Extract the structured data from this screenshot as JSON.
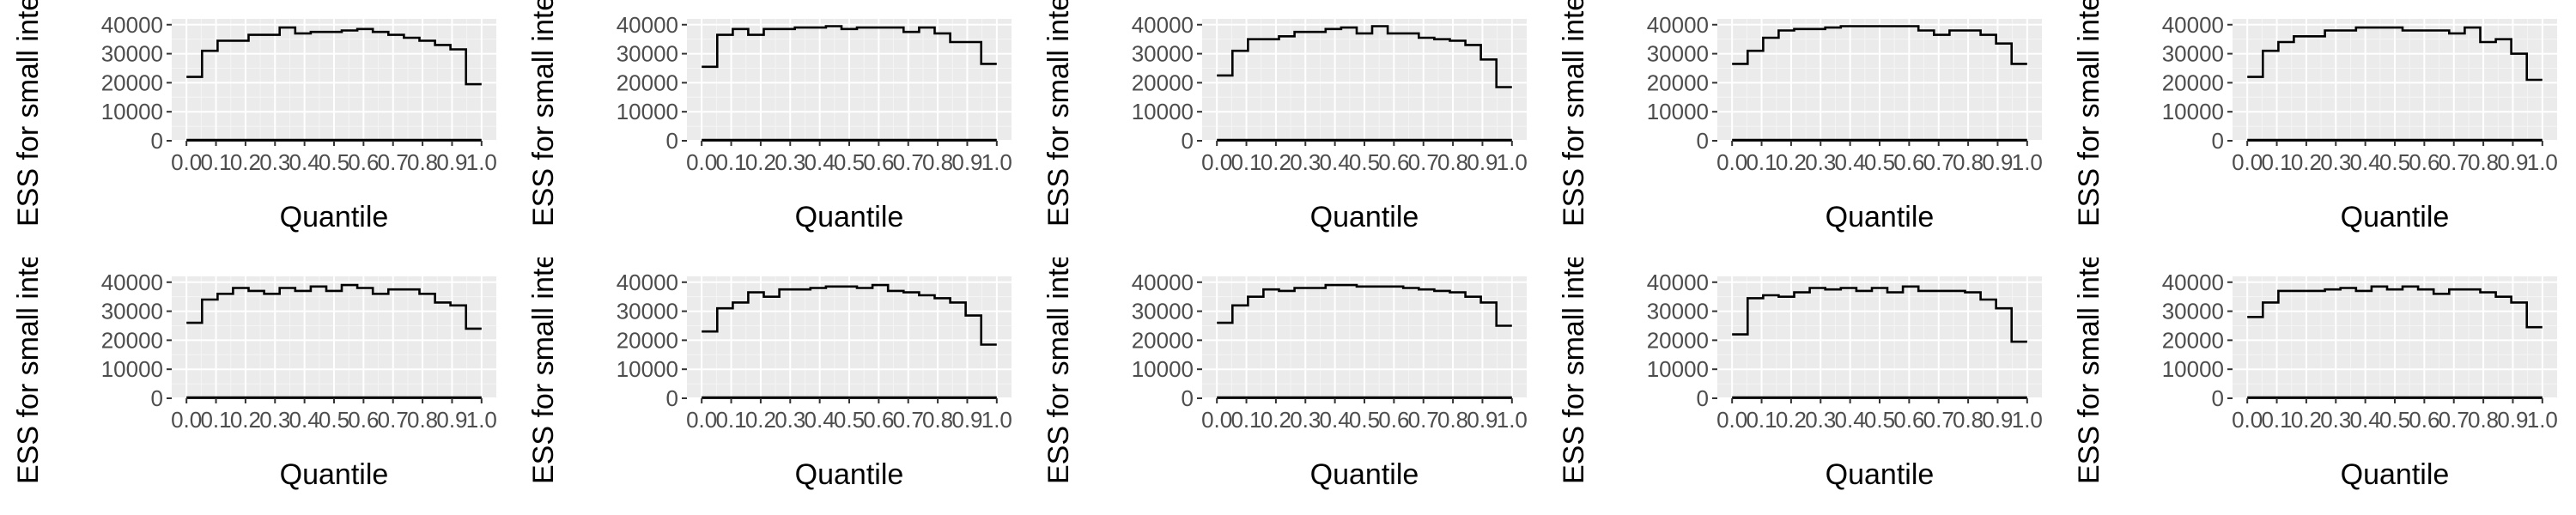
{
  "chart_data": [
    {
      "type": "line",
      "xlabel": "Quantile",
      "ylabel": "ESS for small intervals",
      "ylim": [
        0,
        42000
      ],
      "x_ticks": [
        "0.0",
        "0.1",
        "0.2",
        "0.3",
        "0.4",
        "0.5",
        "0.6",
        "0.7",
        "0.8",
        "0.9",
        "1.0"
      ],
      "y_ticks": [
        "0",
        "10000",
        "20000",
        "30000",
        "40000"
      ],
      "series": [
        {
          "values": [
            22000,
            31000,
            34500,
            34500,
            36500,
            36500,
            39000,
            37000,
            37500,
            37500,
            38000,
            38500,
            37500,
            36500,
            35500,
            34500,
            33000,
            31500,
            19500
          ]
        },
        {
          "values": [
            200,
            200,
            200,
            200,
            200,
            200,
            200,
            200,
            200,
            200,
            200,
            200,
            200,
            200,
            200,
            200,
            200,
            200,
            200
          ]
        }
      ]
    },
    {
      "type": "line",
      "xlabel": "Quantile",
      "ylabel": "ESS for small intervals",
      "ylim": [
        0,
        42000
      ],
      "x_ticks": [
        "0.0",
        "0.1",
        "0.2",
        "0.3",
        "0.4",
        "0.5",
        "0.6",
        "0.7",
        "0.8",
        "0.9",
        "1.0"
      ],
      "y_ticks": [
        "0",
        "10000",
        "20000",
        "30000",
        "40000"
      ],
      "series": [
        {
          "values": [
            25500,
            36500,
            38500,
            36500,
            38500,
            38500,
            39000,
            39000,
            39500,
            38500,
            39000,
            39000,
            39000,
            37500,
            39000,
            37000,
            34000,
            34000,
            26500
          ]
        },
        {
          "values": [
            200,
            200,
            200,
            200,
            200,
            200,
            200,
            200,
            200,
            200,
            200,
            200,
            200,
            200,
            200,
            200,
            200,
            200,
            200
          ]
        }
      ]
    },
    {
      "type": "line",
      "xlabel": "Quantile",
      "ylabel": "ESS for small intervals",
      "ylim": [
        0,
        42000
      ],
      "x_ticks": [
        "0.0",
        "0.1",
        "0.2",
        "0.3",
        "0.4",
        "0.5",
        "0.6",
        "0.7",
        "0.8",
        "0.9",
        "1.0"
      ],
      "y_ticks": [
        "0",
        "10000",
        "20000",
        "30000",
        "40000"
      ],
      "series": [
        {
          "values": [
            22500,
            31000,
            35000,
            35000,
            36000,
            37500,
            37500,
            38500,
            39000,
            37000,
            39500,
            37000,
            37000,
            35500,
            35000,
            34500,
            33000,
            28000,
            18500
          ]
        },
        {
          "values": [
            200,
            200,
            200,
            200,
            200,
            200,
            200,
            200,
            200,
            200,
            200,
            200,
            200,
            200,
            200,
            200,
            200,
            200,
            200
          ]
        }
      ]
    },
    {
      "type": "line",
      "xlabel": "Quantile",
      "ylabel": "ESS for small intervals",
      "ylim": [
        0,
        42000
      ],
      "x_ticks": [
        "0.0",
        "0.1",
        "0.2",
        "0.3",
        "0.4",
        "0.5",
        "0.6",
        "0.7",
        "0.8",
        "0.9",
        "1.0"
      ],
      "y_ticks": [
        "0",
        "10000",
        "20000",
        "30000",
        "40000"
      ],
      "series": [
        {
          "values": [
            26500,
            31000,
            35500,
            38000,
            38500,
            38500,
            39000,
            39500,
            39500,
            39500,
            39500,
            39500,
            38000,
            36500,
            38000,
            38000,
            36500,
            33500,
            26500
          ]
        },
        {
          "values": [
            200,
            200,
            200,
            200,
            200,
            200,
            200,
            200,
            200,
            200,
            200,
            200,
            200,
            200,
            200,
            200,
            200,
            200,
            200
          ]
        }
      ]
    },
    {
      "type": "line",
      "xlabel": "Quantile",
      "ylabel": "ESS for small intervals",
      "ylim": [
        0,
        42000
      ],
      "x_ticks": [
        "0.0",
        "0.1",
        "0.2",
        "0.3",
        "0.4",
        "0.5",
        "0.6",
        "0.7",
        "0.8",
        "0.9",
        "1.0"
      ],
      "y_ticks": [
        "0",
        "10000",
        "20000",
        "30000",
        "40000"
      ],
      "series": [
        {
          "values": [
            22000,
            31000,
            34000,
            36000,
            36000,
            38000,
            38000,
            39000,
            39000,
            39000,
            38000,
            38000,
            38000,
            37000,
            39000,
            34000,
            35000,
            30000,
            21000
          ]
        },
        {
          "values": [
            200,
            200,
            200,
            200,
            200,
            200,
            200,
            200,
            200,
            200,
            200,
            200,
            200,
            200,
            200,
            200,
            200,
            200,
            200
          ]
        }
      ]
    },
    {
      "type": "line",
      "xlabel": "Quantile",
      "ylabel": "ESS for small intervals",
      "ylim": [
        0,
        42000
      ],
      "x_ticks": [
        "0.0",
        "0.1",
        "0.2",
        "0.3",
        "0.4",
        "0.5",
        "0.6",
        "0.7",
        "0.8",
        "0.9",
        "1.0"
      ],
      "y_ticks": [
        "0",
        "10000",
        "20000",
        "30000",
        "40000"
      ],
      "series": [
        {
          "values": [
            26000,
            34000,
            36000,
            38000,
            37000,
            36000,
            38000,
            37000,
            38500,
            37000,
            39000,
            38000,
            36000,
            37500,
            37500,
            36000,
            33000,
            32000,
            24000
          ]
        },
        {
          "values": [
            200,
            200,
            200,
            200,
            200,
            200,
            200,
            200,
            200,
            200,
            200,
            200,
            200,
            200,
            200,
            200,
            200,
            200,
            200
          ]
        }
      ]
    },
    {
      "type": "line",
      "xlabel": "Quantile",
      "ylabel": "ESS for small intervals",
      "ylim": [
        0,
        42000
      ],
      "x_ticks": [
        "0.0",
        "0.1",
        "0.2",
        "0.3",
        "0.4",
        "0.5",
        "0.6",
        "0.7",
        "0.8",
        "0.9",
        "1.0"
      ],
      "y_ticks": [
        "0",
        "10000",
        "20000",
        "30000",
        "40000"
      ],
      "series": [
        {
          "values": [
            23000,
            31000,
            33000,
            36500,
            35000,
            37500,
            37500,
            38000,
            38500,
            38500,
            38000,
            39000,
            37000,
            36500,
            35500,
            34500,
            33000,
            28500,
            18500
          ]
        },
        {
          "values": [
            200,
            200,
            200,
            200,
            200,
            200,
            200,
            200,
            200,
            200,
            200,
            200,
            200,
            200,
            200,
            200,
            200,
            200,
            200
          ]
        }
      ]
    },
    {
      "type": "line",
      "xlabel": "Quantile",
      "ylabel": "ESS for small intervals",
      "ylim": [
        0,
        42000
      ],
      "x_ticks": [
        "0.0",
        "0.1",
        "0.2",
        "0.3",
        "0.4",
        "0.5",
        "0.6",
        "0.7",
        "0.8",
        "0.9",
        "1.0"
      ],
      "y_ticks": [
        "0",
        "10000",
        "20000",
        "30000",
        "40000"
      ],
      "series": [
        {
          "values": [
            26000,
            32000,
            35000,
            37500,
            37000,
            38000,
            38000,
            39000,
            39000,
            38500,
            38500,
            38500,
            38000,
            37500,
            37000,
            36500,
            35000,
            33000,
            25000
          ]
        },
        {
          "values": [
            200,
            200,
            200,
            200,
            200,
            200,
            200,
            200,
            200,
            200,
            200,
            200,
            200,
            200,
            200,
            200,
            200,
            200,
            200
          ]
        }
      ]
    },
    {
      "type": "line",
      "xlabel": "Quantile",
      "ylabel": "ESS for small intervals",
      "ylim": [
        0,
        42000
      ],
      "x_ticks": [
        "0.0",
        "0.1",
        "0.2",
        "0.3",
        "0.4",
        "0.5",
        "0.6",
        "0.7",
        "0.8",
        "0.9",
        "1.0"
      ],
      "y_ticks": [
        "0",
        "10000",
        "20000",
        "30000",
        "40000"
      ],
      "series": [
        {
          "values": [
            22000,
            34500,
            35500,
            35000,
            36500,
            38000,
            37500,
            38000,
            37000,
            38000,
            36500,
            38500,
            37000,
            37000,
            37000,
            36500,
            34000,
            31000,
            19500
          ]
        },
        {
          "values": [
            200,
            200,
            200,
            200,
            200,
            200,
            200,
            200,
            200,
            200,
            200,
            200,
            200,
            200,
            200,
            200,
            200,
            200,
            200
          ]
        }
      ]
    },
    {
      "type": "line",
      "xlabel": "Quantile",
      "ylabel": "ESS for small intervals",
      "ylim": [
        0,
        42000
      ],
      "x_ticks": [
        "0.0",
        "0.1",
        "0.2",
        "0.3",
        "0.4",
        "0.5",
        "0.6",
        "0.7",
        "0.8",
        "0.9",
        "1.0"
      ],
      "y_ticks": [
        "0",
        "10000",
        "20000",
        "30000",
        "40000"
      ],
      "series": [
        {
          "values": [
            28000,
            33000,
            37000,
            37000,
            37000,
            37500,
            38000,
            37000,
            38500,
            37500,
            38500,
            37500,
            36000,
            37500,
            37500,
            36500,
            35000,
            33000,
            24500
          ]
        },
        {
          "values": [
            200,
            200,
            200,
            200,
            200,
            200,
            200,
            200,
            200,
            200,
            200,
            200,
            200,
            200,
            200,
            200,
            200,
            200,
            200
          ]
        }
      ]
    }
  ]
}
